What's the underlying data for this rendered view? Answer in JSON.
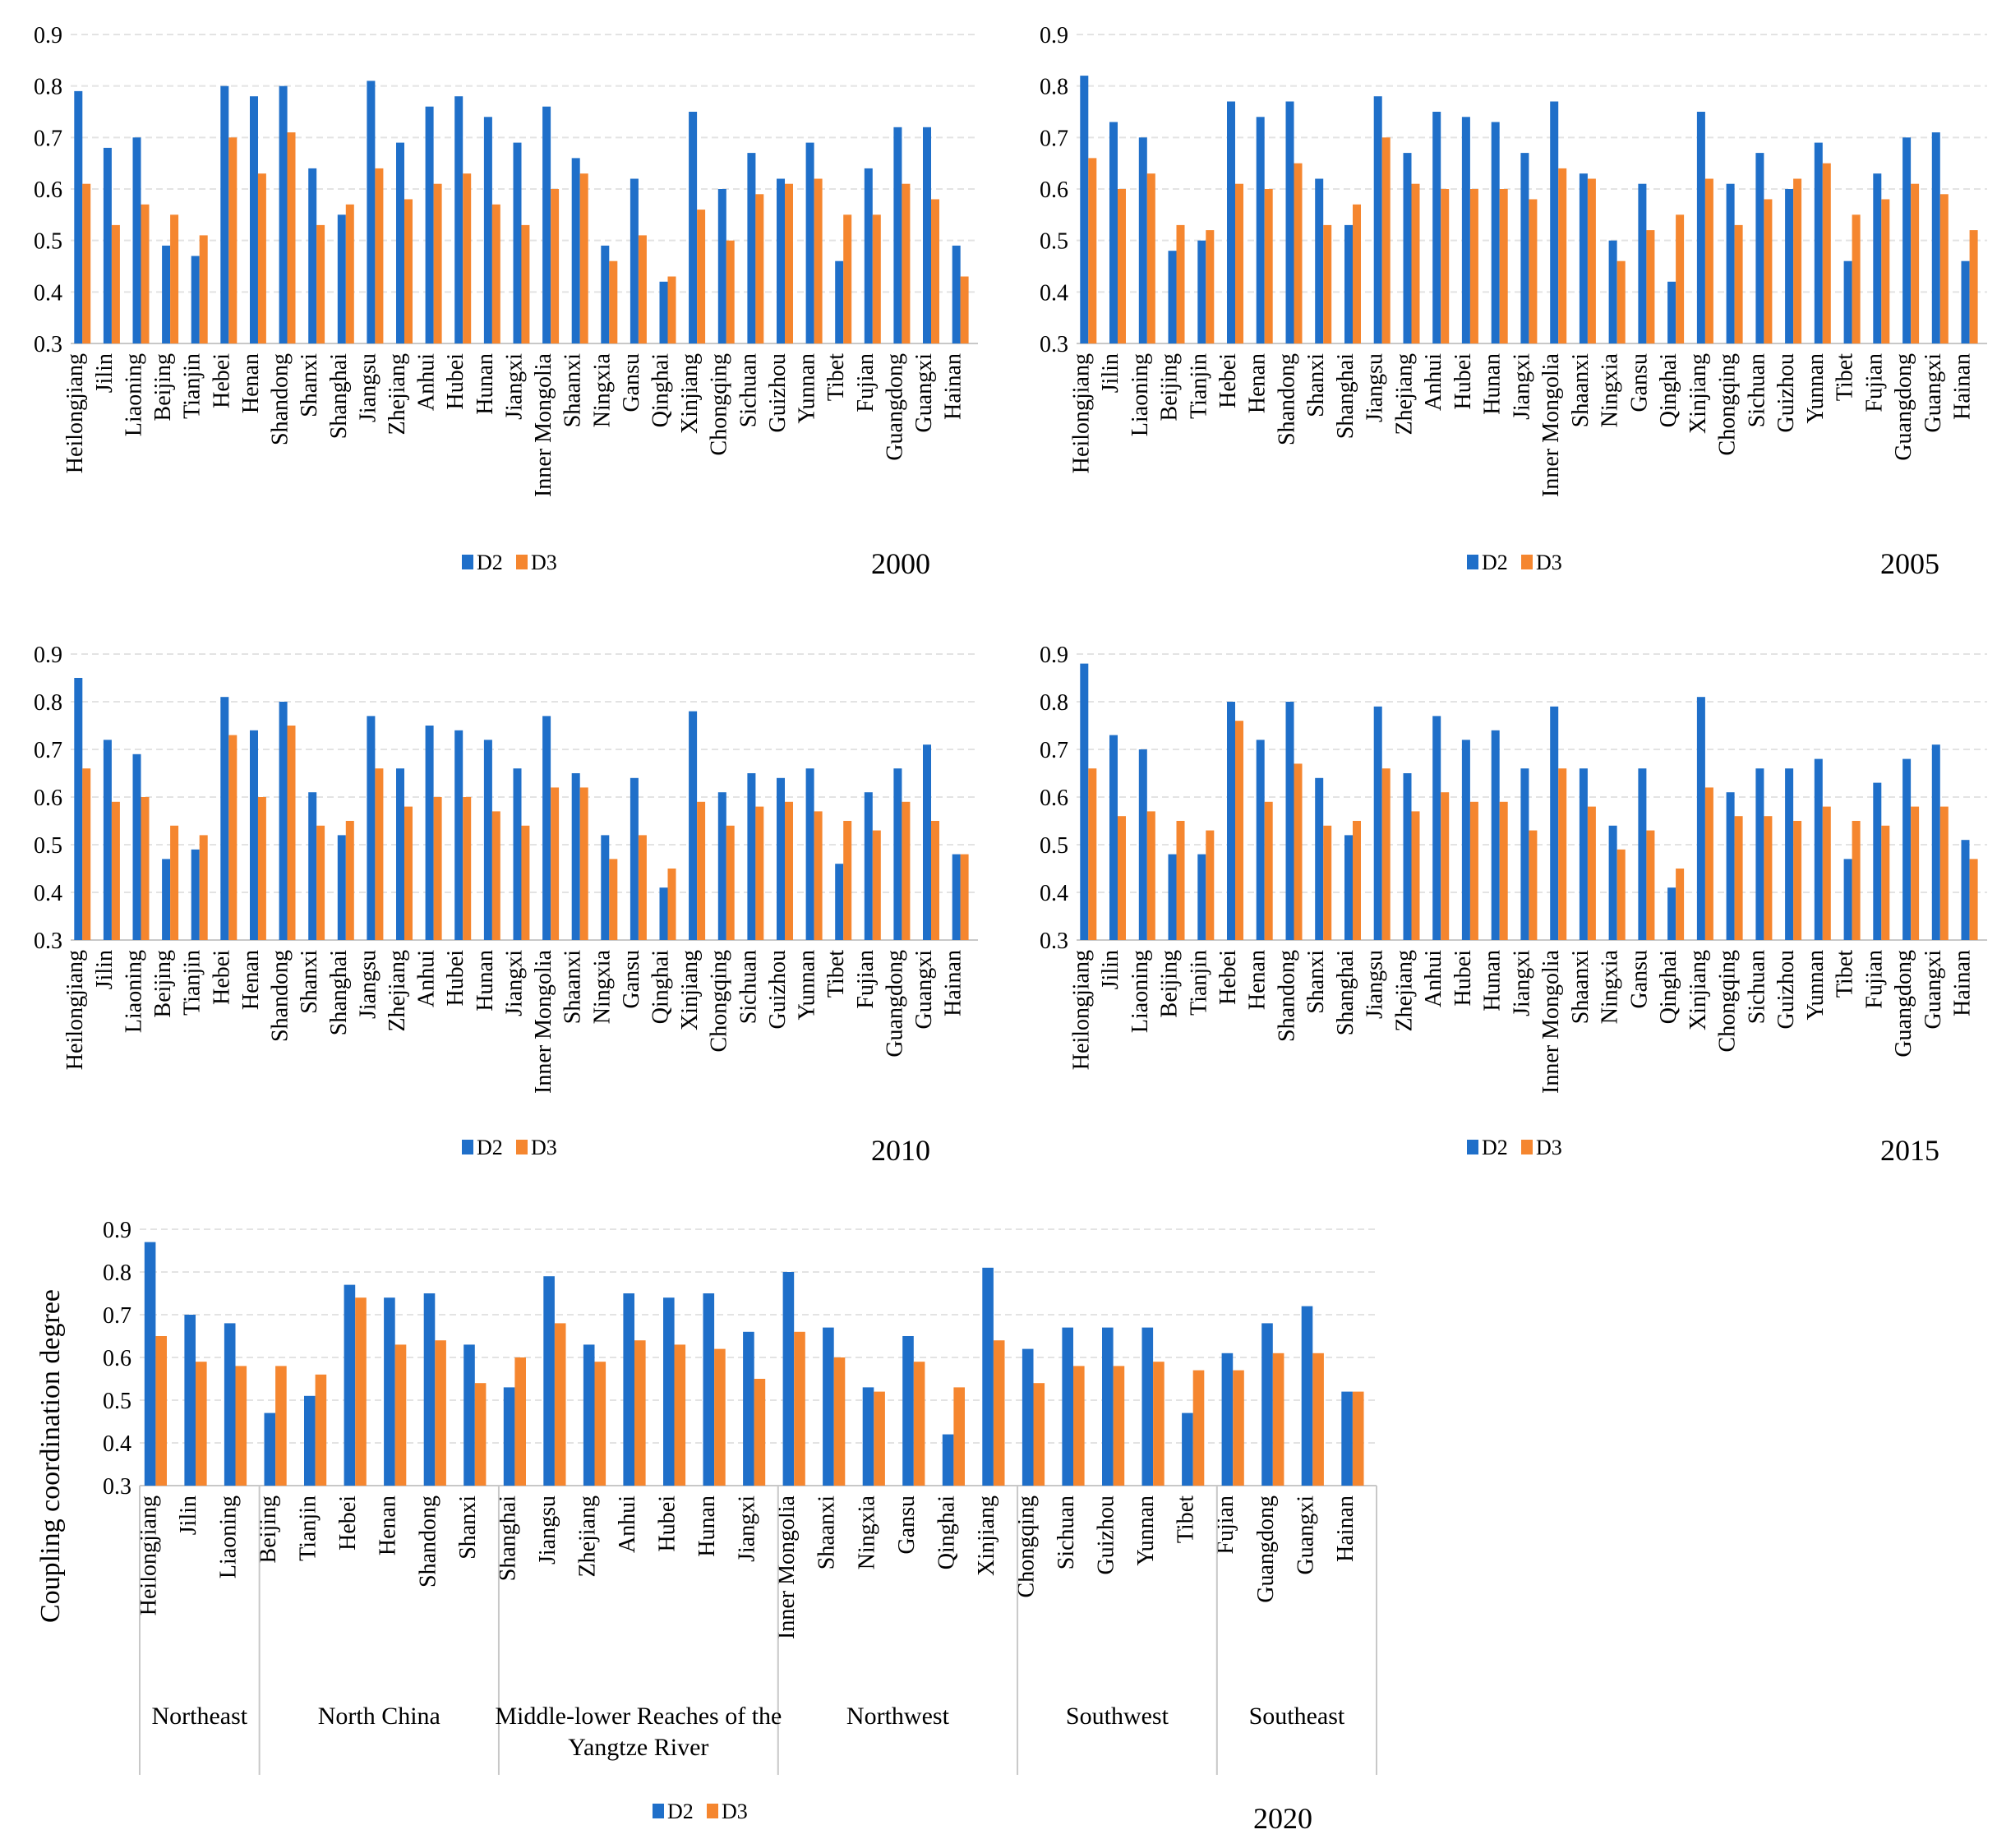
{
  "figure": {
    "ylabel": "Coupling coordination degree",
    "colors": {
      "D2": "#1f6fc9",
      "D3": "#f5862f",
      "grid": "#e3e3e3",
      "axis": "#c8c8c8"
    }
  },
  "chart_data": [
    {
      "type": "bar",
      "title": "2000",
      "xlabel": "",
      "ylabel": "",
      "ylim": [
        0.3,
        0.9
      ],
      "yticks": [
        "0.3",
        "0.4",
        "0.5",
        "0.6",
        "0.7",
        "0.8",
        "0.9"
      ],
      "legend": [
        "D2",
        "D3"
      ],
      "categories": [
        "Heilongjiang",
        "Jilin",
        "Liaoning",
        "Beijing",
        "Tianjin",
        "Hebei",
        "Henan",
        "Shandong",
        "Shanxi",
        "Shanghai",
        "Jiangsu",
        "Zhejiang",
        "Anhui",
        "Hubei",
        "Hunan",
        "Jiangxi",
        "Inner Mongolia",
        "Shaanxi",
        "Ningxia",
        "Gansu",
        "Qinghai",
        "Xinjiang",
        "Chongqing",
        "Sichuan",
        "Guizhou",
        "Yunnan",
        "Tibet",
        "Fujian",
        "Guangdong",
        "Guangxi",
        "Hainan"
      ],
      "series": [
        {
          "name": "D2",
          "values": [
            0.79,
            0.68,
            0.7,
            0.49,
            0.47,
            0.8,
            0.78,
            0.8,
            0.64,
            0.55,
            0.81,
            0.69,
            0.76,
            0.78,
            0.74,
            0.69,
            0.76,
            0.66,
            0.49,
            0.62,
            0.42,
            0.75,
            0.6,
            0.67,
            0.62,
            0.69,
            0.46,
            0.64,
            0.72,
            0.72,
            0.49
          ]
        },
        {
          "name": "D3",
          "values": [
            0.61,
            0.53,
            0.57,
            0.55,
            0.51,
            0.7,
            0.63,
            0.71,
            0.53,
            0.57,
            0.64,
            0.58,
            0.61,
            0.63,
            0.57,
            0.53,
            0.6,
            0.63,
            0.46,
            0.51,
            0.43,
            0.56,
            0.5,
            0.59,
            0.61,
            0.62,
            0.55,
            0.55,
            0.61,
            0.58,
            0.43
          ]
        }
      ]
    },
    {
      "type": "bar",
      "title": "2005",
      "xlabel": "",
      "ylabel": "",
      "ylim": [
        0.3,
        0.9
      ],
      "yticks": [
        "0.3",
        "0.4",
        "0.5",
        "0.6",
        "0.7",
        "0.8",
        "0.9"
      ],
      "legend": [
        "D2",
        "D3"
      ],
      "categories": [
        "Heilongjiang",
        "Jilin",
        "Liaoning",
        "Beijing",
        "Tianjin",
        "Hebei",
        "Henan",
        "Shandong",
        "Shanxi",
        "Shanghai",
        "Jiangsu",
        "Zhejiang",
        "Anhui",
        "Hubei",
        "Hunan",
        "Jiangxi",
        "Inner Mongolia",
        "Shaanxi",
        "Ningxia",
        "Gansu",
        "Qinghai",
        "Xinjiang",
        "Chongqing",
        "Sichuan",
        "Guizhou",
        "Yunnan",
        "Tibet",
        "Fujian",
        "Guangdong",
        "Guangxi",
        "Hainan"
      ],
      "series": [
        {
          "name": "D2",
          "values": [
            0.82,
            0.73,
            0.7,
            0.48,
            0.5,
            0.77,
            0.74,
            0.77,
            0.62,
            0.53,
            0.78,
            0.67,
            0.75,
            0.74,
            0.73,
            0.67,
            0.77,
            0.63,
            0.5,
            0.61,
            0.42,
            0.75,
            0.61,
            0.67,
            0.6,
            0.69,
            0.46,
            0.63,
            0.7,
            0.71,
            0.46
          ]
        },
        {
          "name": "D3",
          "values": [
            0.66,
            0.6,
            0.63,
            0.53,
            0.52,
            0.61,
            0.6,
            0.65,
            0.53,
            0.57,
            0.7,
            0.61,
            0.6,
            0.6,
            0.6,
            0.58,
            0.64,
            0.62,
            0.46,
            0.52,
            0.55,
            0.62,
            0.53,
            0.58,
            0.62,
            0.65,
            0.55,
            0.58,
            0.61,
            0.59,
            0.52
          ]
        }
      ]
    },
    {
      "type": "bar",
      "title": "2010",
      "xlabel": "",
      "ylabel": "",
      "ylim": [
        0.3,
        0.9
      ],
      "yticks": [
        "0.3",
        "0.4",
        "0.5",
        "0.6",
        "0.7",
        "0.8",
        "0.9"
      ],
      "legend": [
        "D2",
        "D3"
      ],
      "categories": [
        "Heilongjiang",
        "Jilin",
        "Liaoning",
        "Beijing",
        "Tianjin",
        "Hebei",
        "Henan",
        "Shandong",
        "Shanxi",
        "Shanghai",
        "Jiangsu",
        "Zhejiang",
        "Anhui",
        "Hubei",
        "Hunan",
        "Jiangxi",
        "Inner Mongolia",
        "Shaanxi",
        "Ningxia",
        "Gansu",
        "Qinghai",
        "Xinjiang",
        "Chongqing",
        "Sichuan",
        "Guizhou",
        "Yunnan",
        "Tibet",
        "Fujian",
        "Guangdong",
        "Guangxi",
        "Hainan"
      ],
      "series": [
        {
          "name": "D2",
          "values": [
            0.85,
            0.72,
            0.69,
            0.47,
            0.49,
            0.81,
            0.74,
            0.8,
            0.61,
            0.52,
            0.77,
            0.66,
            0.75,
            0.74,
            0.72,
            0.66,
            0.77,
            0.65,
            0.52,
            0.64,
            0.41,
            0.78,
            0.61,
            0.65,
            0.64,
            0.66,
            0.46,
            0.61,
            0.66,
            0.71,
            0.48
          ]
        },
        {
          "name": "D3",
          "values": [
            0.66,
            0.59,
            0.6,
            0.54,
            0.52,
            0.73,
            0.6,
            0.75,
            0.54,
            0.55,
            0.66,
            0.58,
            0.6,
            0.6,
            0.57,
            0.54,
            0.62,
            0.62,
            0.47,
            0.52,
            0.45,
            0.59,
            0.54,
            0.58,
            0.59,
            0.57,
            0.55,
            0.53,
            0.59,
            0.55,
            0.48
          ]
        }
      ]
    },
    {
      "type": "bar",
      "title": "2015",
      "xlabel": "",
      "ylabel": "",
      "ylim": [
        0.3,
        0.9
      ],
      "yticks": [
        "0.3",
        "0.4",
        "0.5",
        "0.6",
        "0.7",
        "0.8",
        "0.9"
      ],
      "legend": [
        "D2",
        "D3"
      ],
      "categories": [
        "Heilongjiang",
        "Jilin",
        "Liaoning",
        "Beijing",
        "Tianjin",
        "Hebei",
        "Henan",
        "Shandong",
        "Shanxi",
        "Shanghai",
        "Jiangsu",
        "Zhejiang",
        "Anhui",
        "Hubei",
        "Hunan",
        "Jiangxi",
        "Inner Mongolia",
        "Shaanxi",
        "Ningxia",
        "Gansu",
        "Qinghai",
        "Xinjiang",
        "Chongqing",
        "Sichuan",
        "Guizhou",
        "Yunnan",
        "Tibet",
        "Fujian",
        "Guangdong",
        "Guangxi",
        "Hainan"
      ],
      "series": [
        {
          "name": "D2",
          "values": [
            0.88,
            0.73,
            0.7,
            0.48,
            0.48,
            0.8,
            0.72,
            0.8,
            0.64,
            0.52,
            0.79,
            0.65,
            0.77,
            0.72,
            0.74,
            0.66,
            0.79,
            0.66,
            0.54,
            0.66,
            0.41,
            0.81,
            0.61,
            0.66,
            0.66,
            0.68,
            0.47,
            0.63,
            0.68,
            0.71,
            0.51
          ]
        },
        {
          "name": "D3",
          "values": [
            0.66,
            0.56,
            0.57,
            0.55,
            0.53,
            0.76,
            0.59,
            0.67,
            0.54,
            0.55,
            0.66,
            0.57,
            0.61,
            0.59,
            0.59,
            0.53,
            0.66,
            0.58,
            0.49,
            0.53,
            0.45,
            0.62,
            0.56,
            0.56,
            0.55,
            0.58,
            0.55,
            0.54,
            0.58,
            0.58,
            0.47
          ]
        }
      ]
    },
    {
      "type": "bar",
      "title": "2020",
      "xlabel": "",
      "ylabel": "Coupling coordination degree",
      "ylim": [
        0.3,
        0.9
      ],
      "yticks": [
        "0.3",
        "0.4",
        "0.5",
        "0.6",
        "0.7",
        "0.8",
        "0.9"
      ],
      "legend": [
        "D2",
        "D3"
      ],
      "categories": [
        "Heilongjiang",
        "Jilin",
        "Liaoning",
        "Beijing",
        "Tianjin",
        "Hebei",
        "Henan",
        "Shandong",
        "Shanxi",
        "Shanghai",
        "Jiangsu",
        "Zhejiang",
        "Anhui",
        "Hubei",
        "Hunan",
        "Jiangxi",
        "Inner Mongolia",
        "Shaanxi",
        "Ningxia",
        "Gansu",
        "Qinghai",
        "Xinjiang",
        "Chongqing",
        "Sichuan",
        "Guizhou",
        "Yunnan",
        "Tibet",
        "Fujian",
        "Guangdong",
        "Guangxi",
        "Hainan"
      ],
      "groups": [
        {
          "name": "Northeast",
          "count": 3
        },
        {
          "name": "North China",
          "count": 6
        },
        {
          "name": "Middle-lower Reaches of the Yangtze River",
          "count": 7
        },
        {
          "name": "Northwest",
          "count": 6
        },
        {
          "name": "Southwest",
          "count": 5
        },
        {
          "name": "Southeast",
          "count": 4
        }
      ],
      "series": [
        {
          "name": "D2",
          "values": [
            0.87,
            0.7,
            0.68,
            0.47,
            0.51,
            0.77,
            0.74,
            0.75,
            0.63,
            0.53,
            0.79,
            0.63,
            0.75,
            0.74,
            0.75,
            0.66,
            0.8,
            0.67,
            0.53,
            0.65,
            0.42,
            0.81,
            0.62,
            0.67,
            0.67,
            0.67,
            0.47,
            0.61,
            0.68,
            0.72,
            0.52
          ]
        },
        {
          "name": "D3",
          "values": [
            0.65,
            0.59,
            0.58,
            0.58,
            0.56,
            0.74,
            0.63,
            0.64,
            0.54,
            0.6,
            0.68,
            0.59,
            0.64,
            0.63,
            0.62,
            0.55,
            0.66,
            0.6,
            0.52,
            0.59,
            0.53,
            0.64,
            0.54,
            0.58,
            0.58,
            0.59,
            0.57,
            0.57,
            0.61,
            0.61,
            0.52
          ]
        }
      ]
    }
  ]
}
